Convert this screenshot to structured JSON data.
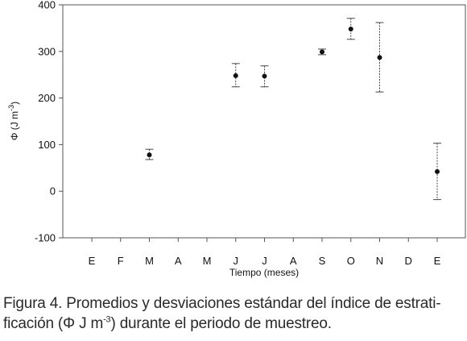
{
  "chart_data": {
    "type": "scatter",
    "xlabel": "Tiempo (meses)",
    "ylabel": "Φ (J m",
    "ylabel_exp": "-3",
    "ylabel_close": ")",
    "ylim": [
      -100,
      400
    ],
    "yticks": [
      -100,
      0,
      100,
      200,
      300,
      400
    ],
    "categories": [
      "E",
      "F",
      "M",
      "A",
      "M",
      "J",
      "J",
      "A",
      "S",
      "O",
      "N",
      "D",
      "E"
    ],
    "grid": false,
    "points": [
      {
        "category_index": 2,
        "category": "M",
        "y": 78,
        "err_low": 68,
        "err_high": 90
      },
      {
        "category_index": 5,
        "category": "J",
        "y": 248,
        "err_low": 224,
        "err_high": 274
      },
      {
        "category_index": 6,
        "category": "J",
        "y": 247,
        "err_low": 224,
        "err_high": 269
      },
      {
        "category_index": 8,
        "category": "S",
        "y": 299,
        "err_low": 293,
        "err_high": 305
      },
      {
        "category_index": 9,
        "category": "O",
        "y": 348,
        "err_low": 326,
        "err_high": 371
      },
      {
        "category_index": 10,
        "category": "N",
        "y": 287,
        "err_low": 213,
        "err_high": 362
      },
      {
        "category_index": 12,
        "category": "E",
        "y": 42,
        "err_low": -18,
        "err_high": 103
      }
    ]
  },
  "caption": {
    "line1": "Figura 4. Promedios y desviaciones estándar del índice de estrati-",
    "line2_a": "ficación (",
    "line2_phi": "Φ",
    "line2_b": " J m",
    "line2_exp": "-3",
    "line2_c": ") durante el periodo de muestreo."
  }
}
